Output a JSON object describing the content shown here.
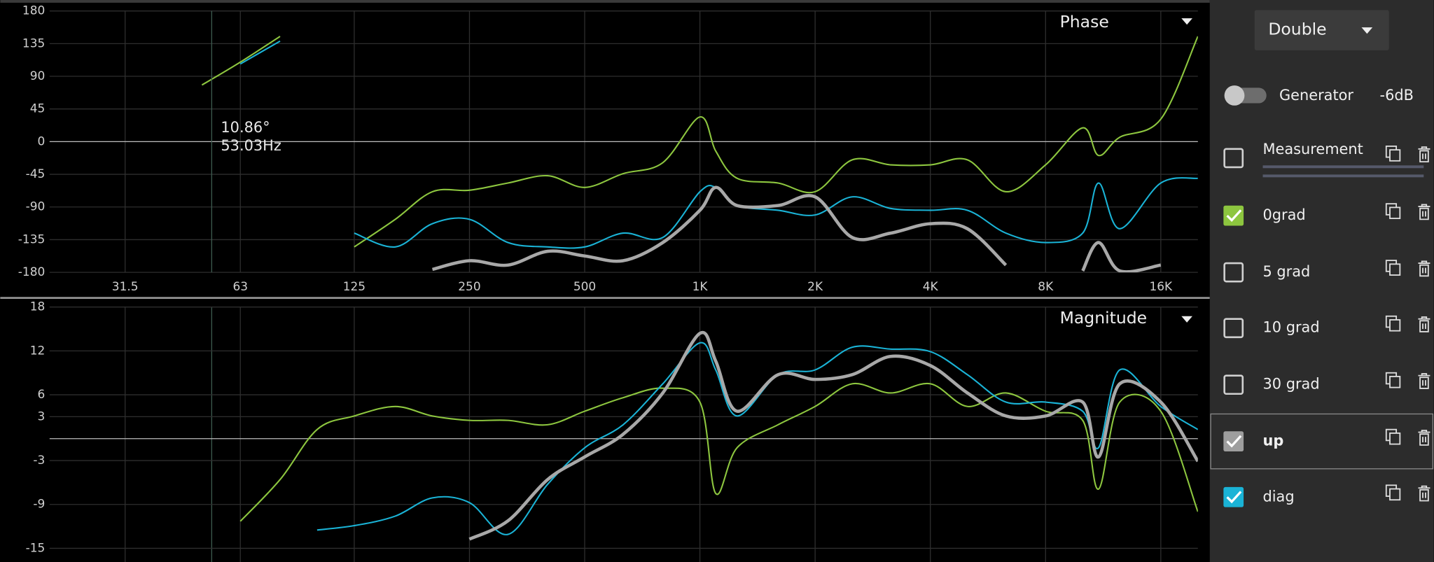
{
  "toolbar": {
    "mode": "Double"
  },
  "generator": {
    "label": "Generator",
    "level": "-6dB",
    "on": false
  },
  "items": [
    {
      "label": "Measurement",
      "checked": false
    },
    {
      "label": "0grad",
      "checked": true,
      "color": "#8dc63f"
    },
    {
      "label": "5 grad",
      "checked": false
    },
    {
      "label": "10 grad",
      "checked": false
    },
    {
      "label": "30 grad",
      "checked": false
    },
    {
      "label": "up",
      "checked": true,
      "color": "#9e9e9e"
    },
    {
      "label": "diag",
      "checked": true,
      "color": "#1ab3d6"
    }
  ],
  "chart_data": [
    {
      "type": "line",
      "title": "Phase",
      "log_x": true,
      "grid": true,
      "xlim": [
        20,
        20000
      ],
      "xticks": [
        31.5,
        63,
        125,
        250,
        500,
        {
          "value": 1000,
          "label": "1K"
        },
        {
          "value": 2000,
          "label": "2K"
        },
        {
          "value": 4000,
          "label": "4K"
        },
        {
          "value": 8000,
          "label": "8K"
        },
        {
          "value": 16000,
          "label": "16K"
        }
      ],
      "ylim": [
        -180,
        180
      ],
      "yticks": [
        180,
        135,
        90,
        45,
        0,
        -45,
        -90,
        -135,
        -180
      ],
      "cursor": {
        "x": 53.03,
        "x_label": "53.03Hz",
        "y_label": "10.86°"
      },
      "x": [
        20,
        25,
        31.5,
        40,
        50,
        63,
        80,
        100,
        125,
        160,
        200,
        250,
        315,
        400,
        500,
        630,
        800,
        1000,
        1100,
        1250,
        1600,
        2000,
        2500,
        3150,
        4000,
        5000,
        6300,
        8000,
        10000,
        11000,
        12500,
        16000,
        20000
      ],
      "series": [
        {
          "name": "0grad",
          "color": "#8dc63f",
          "width": 1.6,
          "values": [
            null,
            null,
            null,
            null,
            78,
            109.5,
            145,
            null,
            -145,
            -107,
            -69,
            -67,
            -57,
            -47,
            -63,
            -44,
            -29,
            34,
            -13,
            -50.5,
            -57,
            -69,
            -25,
            -32,
            -32,
            -25,
            -69,
            -32,
            19,
            -19,
            6,
            31,
            145
          ]
        },
        {
          "name": "diag",
          "color": "#1ab3d6",
          "width": 1.6,
          "values": [
            null,
            null,
            null,
            null,
            null,
            107,
            138.5,
            null,
            -126,
            -145,
            -113,
            -107,
            -139,
            -145,
            -145,
            -126,
            -132,
            -69,
            -63,
            -88,
            -94.5,
            -101,
            -76,
            -92,
            -94.5,
            -94.5,
            -126,
            -139,
            -126,
            -57,
            -120,
            -57,
            -50.5
          ]
        },
        {
          "name": "up",
          "color": "#a8a8a8",
          "width": 3.5,
          "values": [
            null,
            null,
            null,
            null,
            null,
            null,
            null,
            null,
            null,
            null,
            -176,
            -164,
            -170,
            -151,
            -157.5,
            -164,
            -139,
            -94.5,
            -63,
            -88,
            -88,
            -76,
            -132,
            -126,
            -113,
            -120,
            -170,
            null,
            -178,
            -139,
            -178,
            -170,
            null
          ]
        }
      ]
    },
    {
      "type": "line",
      "title": "Magnitude",
      "log_x": true,
      "grid": true,
      "xlim": [
        20,
        20000
      ],
      "ylim": [
        -17,
        18
      ],
      "yticks": [
        18,
        12,
        6,
        3,
        -3,
        -9,
        -15
      ],
      "x": [
        20,
        25,
        31.5,
        40,
        50,
        63,
        80,
        100,
        125,
        160,
        200,
        250,
        315,
        400,
        500,
        630,
        800,
        1000,
        1100,
        1250,
        1600,
        2000,
        2500,
        3150,
        4000,
        5000,
        6300,
        8000,
        10000,
        11000,
        12500,
        16000,
        20000
      ],
      "series": [
        {
          "name": "0grad",
          "color": "#8dc63f",
          "width": 1.6,
          "values": [
            null,
            null,
            null,
            null,
            null,
            -11.3,
            -5.6,
            1.25,
            3.1,
            4.4,
            3.1,
            2.5,
            2.5,
            1.9,
            3.75,
            5.6,
            6.9,
            5,
            -7.5,
            -1.25,
            1.9,
            4.4,
            7.5,
            6.25,
            7.5,
            4.4,
            6.25,
            3.75,
            2.5,
            -6.9,
            5,
            3.75,
            -10
          ]
        },
        {
          "name": "diag",
          "color": "#1ab3d6",
          "width": 1.6,
          "values": [
            null,
            null,
            null,
            null,
            null,
            null,
            null,
            -12.5,
            -11.9,
            -10.6,
            -8.1,
            -8.75,
            -13.1,
            -6.25,
            -1.25,
            1.9,
            7.5,
            13.1,
            9.4,
            3.1,
            8.75,
            9.4,
            12.5,
            12.25,
            11.9,
            8.75,
            5,
            5,
            3.75,
            -1.25,
            9.4,
            4.4,
            1.25
          ]
        },
        {
          "name": "up",
          "color": "#a8a8a8",
          "width": 3.5,
          "values": [
            null,
            null,
            null,
            null,
            null,
            null,
            null,
            null,
            null,
            null,
            null,
            -13.75,
            -11.25,
            -5.6,
            -2.5,
            0.6,
            6.25,
            14.4,
            10.6,
            3.75,
            8.75,
            8.1,
            8.75,
            11.25,
            10,
            6.25,
            3.1,
            3.1,
            5,
            -2.5,
            7.5,
            5,
            -3.1
          ]
        }
      ]
    }
  ]
}
